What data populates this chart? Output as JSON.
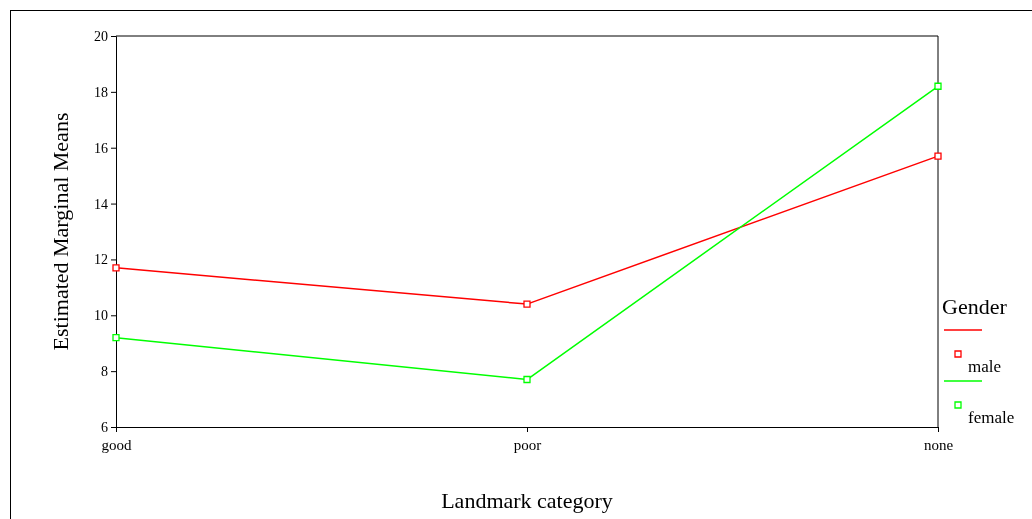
{
  "chart_data": {
    "type": "line",
    "xlabel": "Landmark category",
    "ylabel": "Estimated Marginal Means",
    "legend_title": "Gender",
    "categories": [
      "good",
      "poor",
      "none"
    ],
    "series": [
      {
        "name": "male",
        "color": "#ff0000",
        "values": [
          11.7,
          10.4,
          15.7
        ]
      },
      {
        "name": "female",
        "color": "#00ff00",
        "values": [
          9.2,
          7.7,
          18.2
        ]
      }
    ],
    "ylim": [
      6,
      20
    ],
    "yticks": [
      6,
      8,
      10,
      12,
      14,
      16,
      18,
      20
    ],
    "grid": false,
    "legend": "right",
    "marker": "square",
    "line_style": "solid"
  }
}
